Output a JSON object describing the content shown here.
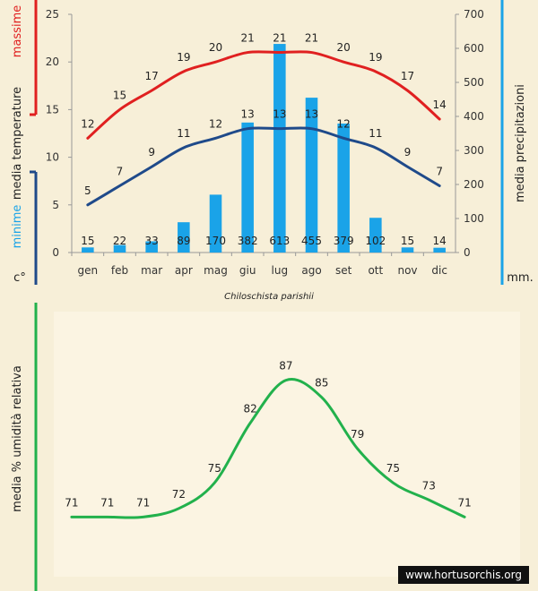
{
  "chart_data": [
    {
      "type": "bar+line",
      "categories": [
        "gen",
        "feb",
        "mar",
        "apr",
        "mag",
        "giu",
        "lug",
        "ago",
        "set",
        "ott",
        "nov",
        "dic"
      ],
      "series": [
        {
          "name": "massime",
          "type": "line",
          "axis": "left",
          "color": "#e02020",
          "values": [
            12,
            15,
            17,
            19,
            20,
            21,
            21,
            21,
            20,
            19,
            17,
            14
          ]
        },
        {
          "name": "minime",
          "type": "line",
          "axis": "left",
          "color": "#1f4a8a",
          "values": [
            5,
            7,
            9,
            11,
            12,
            13,
            13,
            13,
            12,
            11,
            9,
            7
          ]
        },
        {
          "type": "bar",
          "axis": "right",
          "color": "#1aa3e8",
          "values": [
            15,
            22,
            33,
            89,
            170,
            382,
            613,
            455,
            379,
            102,
            15,
            14
          ]
        }
      ],
      "ylabel_left": "media  temperature",
      "ylabel_left_top": "massime",
      "ylabel_left_bottom": "minime",
      "unit_left": "c°",
      "ylim_left": [
        0,
        25
      ],
      "yticks_left": [
        0,
        5,
        10,
        15,
        20,
        25
      ],
      "ylabel_right": "media  precipitazioni",
      "unit_right": "mm.",
      "ylim_right": [
        0,
        700
      ],
      "yticks_right": [
        0,
        100,
        200,
        300,
        400,
        500,
        600,
        700
      ]
    },
    {
      "type": "line",
      "categories": [
        "gen",
        "feb",
        "mar",
        "apr",
        "mag",
        "giu",
        "lug",
        "ago",
        "set",
        "ott",
        "nov",
        "dic"
      ],
      "series": [
        {
          "color": "#22b14c",
          "values": [
            71,
            71,
            71,
            72,
            75,
            82,
            87,
            85,
            79,
            75,
            73,
            71
          ]
        }
      ],
      "ylabel": "media % umidità relativa",
      "ylim": [
        68,
        90
      ]
    }
  ],
  "subtitle": "Chiloschista parishii",
  "watermark": "www.hortusorchis.org",
  "colors": {
    "background": "#f7efd8",
    "massime": "#e02020",
    "minime": "#1f4a8a",
    "precipitation": "#1aa3e8",
    "humidity": "#22b14c"
  }
}
